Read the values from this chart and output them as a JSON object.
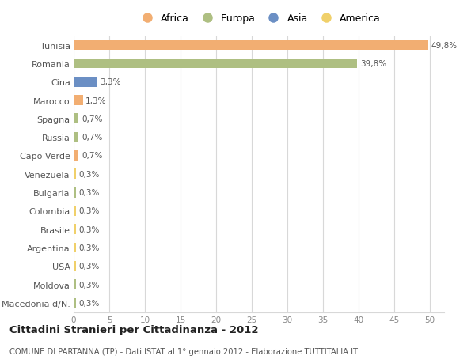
{
  "countries": [
    "Tunisia",
    "Romania",
    "Cina",
    "Marocco",
    "Spagna",
    "Russia",
    "Capo Verde",
    "Venezuela",
    "Bulgaria",
    "Colombia",
    "Brasile",
    "Argentina",
    "USA",
    "Moldova",
    "Macedonia d/N."
  ],
  "values": [
    49.8,
    39.8,
    3.3,
    1.3,
    0.7,
    0.7,
    0.7,
    0.3,
    0.3,
    0.3,
    0.3,
    0.3,
    0.3,
    0.3,
    0.3
  ],
  "labels": [
    "49,8%",
    "39,8%",
    "3,3%",
    "1,3%",
    "0,7%",
    "0,7%",
    "0,7%",
    "0,3%",
    "0,3%",
    "0,3%",
    "0,3%",
    "0,3%",
    "0,3%",
    "0,3%",
    "0,3%"
  ],
  "colors": [
    "#F2AE72",
    "#AEBF82",
    "#6B8FC4",
    "#F2AE72",
    "#AEBF82",
    "#AEBF82",
    "#F2AE72",
    "#F0D06A",
    "#AEBF82",
    "#F0D06A",
    "#F0D06A",
    "#F0D06A",
    "#F0D06A",
    "#AEBF82",
    "#AEBF82"
  ],
  "continent": [
    "Africa",
    "Europa",
    "Asia",
    "Africa",
    "Europa",
    "Europa",
    "Africa",
    "America",
    "Europa",
    "America",
    "America",
    "America",
    "America",
    "Europa",
    "Europa"
  ],
  "legend_labels": [
    "Africa",
    "Europa",
    "Asia",
    "America"
  ],
  "legend_colors": [
    "#F2AE72",
    "#AEBF82",
    "#6B8FC4",
    "#F0D06A"
  ],
  "title": "Cittadini Stranieri per Cittadinanza - 2012",
  "subtitle": "COMUNE DI PARTANNA (TP) - Dati ISTAT al 1° gennaio 2012 - Elaborazione TUTTITALIA.IT",
  "xlim": [
    0,
    52
  ],
  "xticks": [
    0,
    5,
    10,
    15,
    20,
    25,
    30,
    35,
    40,
    45,
    50
  ],
  "background_color": "#ffffff",
  "grid_color": "#d8d8d8",
  "bar_height": 0.55
}
